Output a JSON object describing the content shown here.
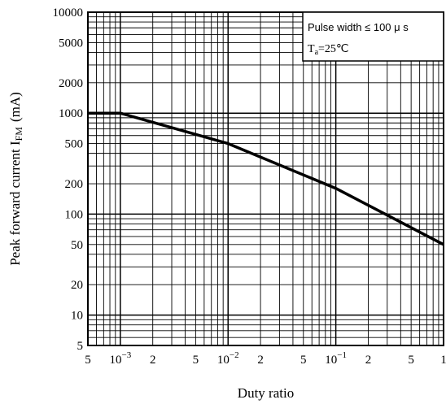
{
  "chart_data": {
    "type": "line",
    "x_scale": "log",
    "y_scale": "log",
    "xlim": [
      0.0005,
      1
    ],
    "ylim": [
      5,
      10000
    ],
    "grid": true,
    "xlabel": "Duty ratio",
    "ylabel": "Peak forward current I",
    "ylabel_sub": "FM",
    "ylabel_unit": "(mA)",
    "x_ticks": [
      {
        "value": 0.0005,
        "label": "5"
      },
      {
        "value": 0.001,
        "label": "10",
        "exp": "−3"
      },
      {
        "value": 0.002,
        "label": "2"
      },
      {
        "value": 0.005,
        "label": "5"
      },
      {
        "value": 0.01,
        "label": "10",
        "exp": "−2"
      },
      {
        "value": 0.02,
        "label": "2"
      },
      {
        "value": 0.05,
        "label": "5"
      },
      {
        "value": 0.1,
        "label": "10",
        "exp": "−1"
      },
      {
        "value": 0.2,
        "label": "2"
      },
      {
        "value": 0.5,
        "label": "5"
      },
      {
        "value": 1,
        "label": "1"
      }
    ],
    "y_ticks": [
      {
        "value": 5,
        "label": "5"
      },
      {
        "value": 10,
        "label": "10"
      },
      {
        "value": 20,
        "label": "20"
      },
      {
        "value": 50,
        "label": "50"
      },
      {
        "value": 100,
        "label": "100"
      },
      {
        "value": 200,
        "label": "200"
      },
      {
        "value": 500,
        "label": "500"
      },
      {
        "value": 1000,
        "label": "1000"
      },
      {
        "value": 2000,
        "label": "2000"
      },
      {
        "value": 5000,
        "label": "5000"
      },
      {
        "value": 10000,
        "label": "10000"
      }
    ],
    "series": [
      {
        "x": [
          0.0005,
          0.001,
          0.01,
          0.1,
          1
        ],
        "y": [
          1000,
          1000,
          500,
          180,
          50
        ]
      }
    ],
    "legend": {
      "position": "top-right",
      "line1": "Pulse  width ≤ 100 μ s",
      "line2_main": "T",
      "line2_sub": "a",
      "line2_rest": "=25℃"
    }
  }
}
